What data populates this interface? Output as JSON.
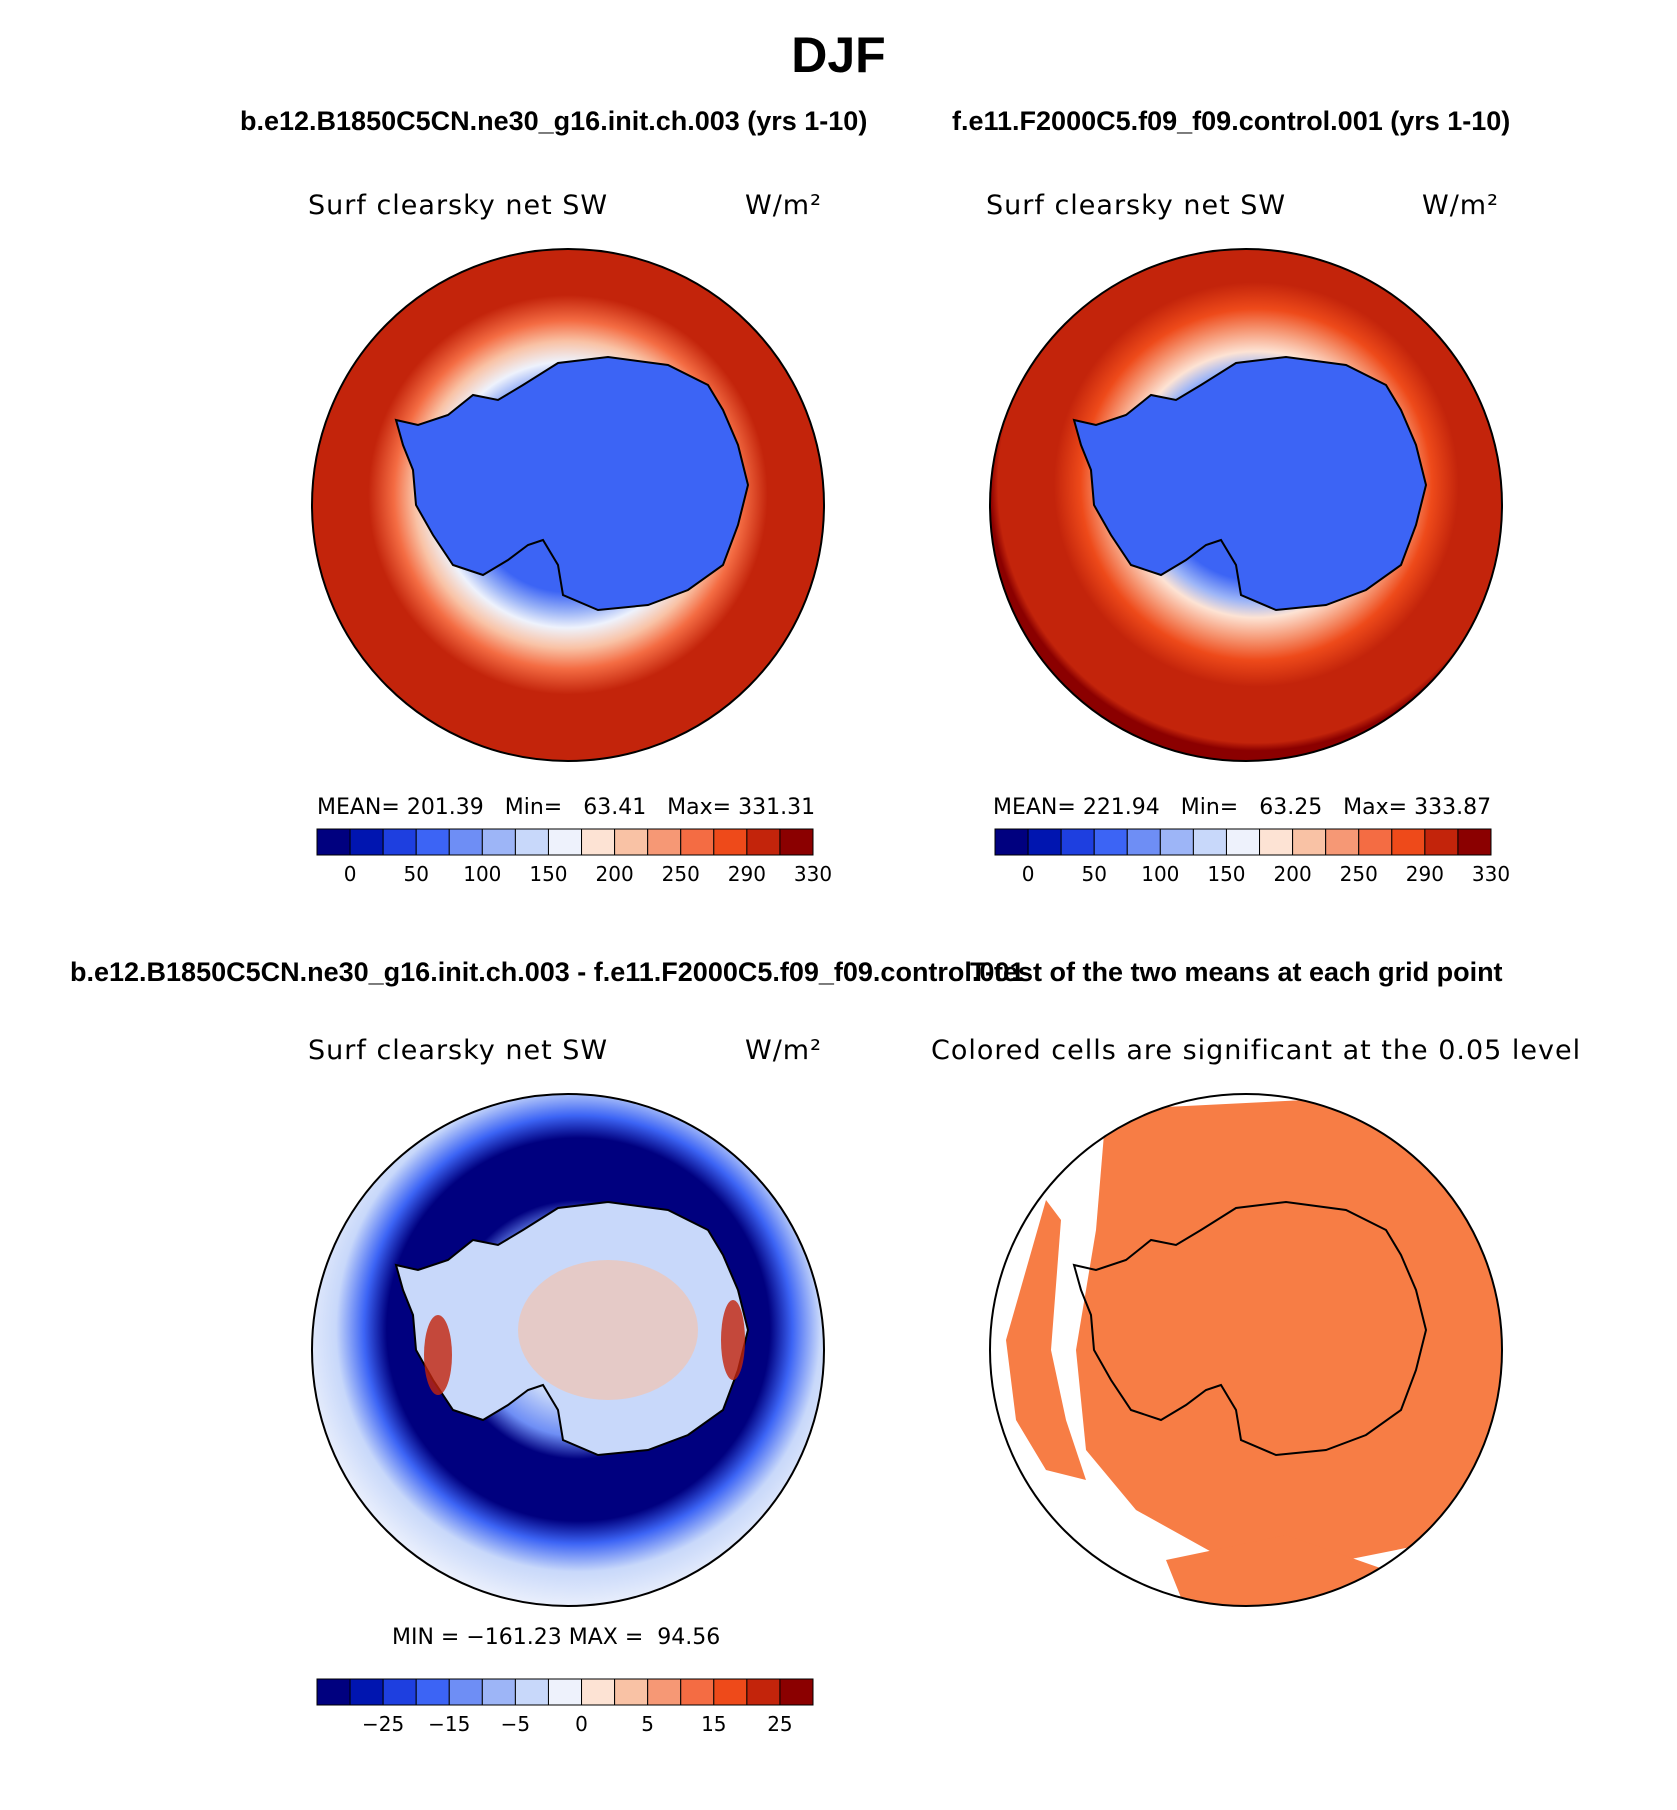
{
  "page": {
    "title": "DJF",
    "case1_title": "b.e12.B1850C5CN.ne30_g16.init.ch.003 (yrs 1-10)",
    "case2_title": "f.e11.F2000C5.f09_f09.control.001 (yrs 1-10)",
    "diff_title": "b.e12.B1850C5CN.ne30_g16.init.ch.003 - f.e11.F2000C5.f09_f09.control.001",
    "ttest_title": "T-test of the two means at each grid point"
  },
  "colors": {
    "absolute_scale": [
      "#00007f",
      "#0015b0",
      "#1e3fe0",
      "#3c64f5",
      "#6e8ef5",
      "#9db5f7",
      "#c8d8fa",
      "#eef2fc",
      "#fde3d4",
      "#f9c2a5",
      "#f69875",
      "#f46c43",
      "#ee4a1a",
      "#c3240b",
      "#8b0000"
    ],
    "diff_scale": [
      "#00007f",
      "#0015b0",
      "#1e3fe0",
      "#3c64f5",
      "#6e8ef5",
      "#9db5f7",
      "#c8d8fa",
      "#eef2fc",
      "#fde3d4",
      "#f9c2a5",
      "#f69875",
      "#f46c43",
      "#ee4a1a",
      "#c3240b",
      "#8b0000"
    ],
    "ttest_fill": "#f77d45",
    "continent_outline": "#000000"
  },
  "chart_data": [
    {
      "type": "heatmap",
      "panel": "case1-mean",
      "title": "Surf clearsky net SW",
      "units": "W/m²",
      "stats": {
        "mean_label": "MEAN=",
        "mean": 201.39,
        "min_label": "Min=",
        "min": 63.41,
        "max_label": "Max=",
        "max": 331.31
      },
      "colorbar_ticks": [
        "0",
        "50",
        "100",
        "150",
        "200",
        "250",
        "290",
        "330"
      ]
    },
    {
      "type": "heatmap",
      "panel": "case2-mean",
      "title": "Surf clearsky net SW",
      "units": "W/m²",
      "stats": {
        "mean_label": "MEAN=",
        "mean": 221.94,
        "min_label": "Min=",
        "min": 63.25,
        "max_label": "Max=",
        "max": 333.87
      },
      "colorbar_ticks": [
        "0",
        "50",
        "100",
        "150",
        "200",
        "250",
        "290",
        "330"
      ]
    },
    {
      "type": "heatmap",
      "panel": "difference",
      "title": "Surf clearsky net SW",
      "units": "W/m²",
      "stats": {
        "min_label": "MIN =",
        "min": -161.23,
        "max_label": "MAX =",
        "max": 94.56
      },
      "colorbar_ticks": [
        "−25",
        "−15",
        "−5",
        "0",
        "5",
        "15",
        "25"
      ]
    },
    {
      "type": "heatmap",
      "panel": "t-test",
      "title": "Colored cells are significant at the 0.05 level",
      "significance_level": 0.05
    }
  ],
  "text": {
    "p1_stats": "MEAN= 201.39   Min=   63.41   Max= 331.31",
    "p2_stats": "MEAN= 221.94   Min=   63.25   Max= 333.87",
    "p3_stats": "MIN = −161.23 MAX =  94.56"
  }
}
